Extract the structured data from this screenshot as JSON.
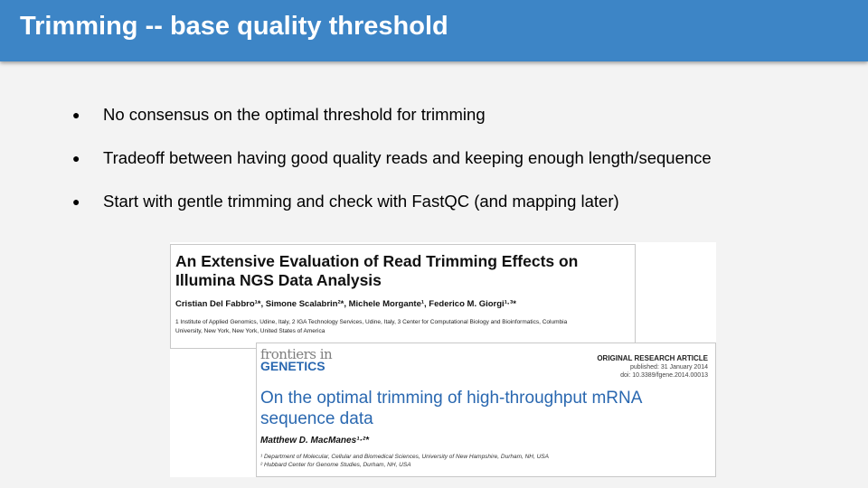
{
  "slide": {
    "title": "Trimming -- base quality threshold",
    "bullets": [
      "No consensus on the optimal threshold for trimming",
      "Tradeoff between having good quality reads and keeping enough length/sequence",
      "Start with gentle trimming and check with FastQC (and mapping later)"
    ],
    "bullet_glyph": "●"
  },
  "paper1": {
    "title_line1": "An Extensive Evaluation of Read Trimming Effects on",
    "title_line2": "Illumina NGS Data Analysis",
    "authors": "Cristian Del Fabbro¹*, Simone Scalabrin²*, Michele Morgante¹, Federico M. Giorgi¹·³*",
    "affiliations_line1": "1 Institute of Applied Genomics, Udine, Italy, 2 IGA Technology Services, Udine, Italy, 3 Center for Computational Biology and Bioinformatics, Columbia",
    "affiliations_line2": "University, New York, New York, United States of America"
  },
  "paper2": {
    "journal_line1": "frontiers in",
    "journal_line2": "GENETICS",
    "article_type": "ORIGINAL RESEARCH ARTICLE",
    "published": "published: 31 January 2014",
    "doi": "doi: 10.3389/fgene.2014.00013",
    "title_line1": "On the optimal trimming of high-throughput mRNA",
    "title_line2": "sequence data",
    "author": "Matthew D. MacManes¹·²*",
    "affiliation1": "¹ Department of Molecular, Cellular and Biomedical Sciences, University of New Hampshire, Durham, NH, USA",
    "affiliation2": "² Hubbard Center for Genome Studies, Durham, NH, USA"
  }
}
